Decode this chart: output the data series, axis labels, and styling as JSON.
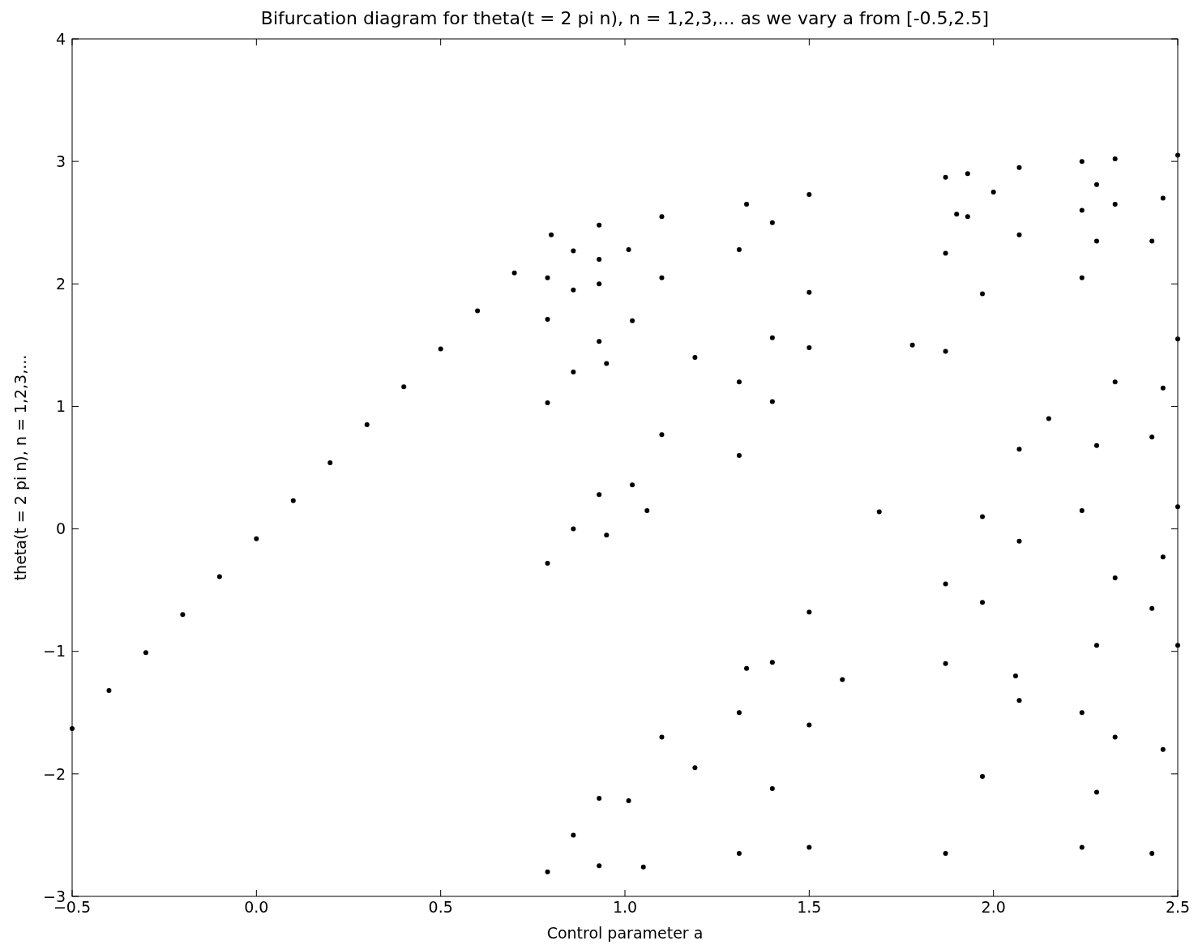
{
  "chart_data": {
    "type": "scatter",
    "title": "Bifurcation diagram for theta(t = 2 pi n), n = 1,2,3,...  as we vary a from [-0.5,2.5]",
    "xlabel": "Control parameter a",
    "ylabel": "theta(t = 2 pi n), n = 1,2,3,...",
    "xlim": [
      -0.5,
      2.5
    ],
    "ylim": [
      -3,
      4
    ],
    "xticks": [
      {
        "value": -0.5,
        "label": "−0.5"
      },
      {
        "value": 0,
        "label": "0.0"
      },
      0.5,
      {
        "value": 1,
        "label": "1.0"
      },
      1.5,
      {
        "value": 2,
        "label": "2.0"
      },
      2.5
    ],
    "yticks": [
      {
        "value": -3,
        "label": "−3"
      },
      {
        "value": -2,
        "label": "−2"
      },
      {
        "value": -1,
        "label": "−1"
      },
      0,
      1,
      2,
      3,
      4
    ],
    "grid": false,
    "marker": "circle",
    "series": [
      {
        "color": "#000000",
        "x": [
          -0.5,
          -0.4,
          -0.3,
          -0.2,
          -0.1,
          0,
          0.1,
          0.2,
          0.3,
          0.4,
          0.5,
          0.6,
          0.7,
          0.8,
          0.79,
          0.86,
          0.93,
          0.79,
          0.86,
          0.93,
          0.79,
          0.86,
          0.93,
          0.79,
          0.86,
          0.93,
          0.79,
          0.86,
          0.93,
          0.93,
          1.01,
          1.1,
          0.95,
          1.02,
          1.1,
          0.95,
          1.02,
          1.1,
          0.93,
          1.01,
          1.1,
          1.06,
          1.19,
          1.33,
          1.05,
          1.19,
          1.33,
          1.31,
          1.4,
          1.5,
          1.31,
          1.4,
          1.5,
          1.31,
          1.4,
          1.5,
          1.31,
          1.4,
          1.5,
          1.31,
          1.4,
          1.5,
          1.5,
          1.59,
          1.69,
          1.78,
          1.87,
          1.87,
          1.9,
          1.93,
          1.93,
          2.0,
          2.07,
          1.87,
          1.97,
          2.07,
          1.87,
          1.97,
          2.07,
          1.87,
          1.97,
          2.07,
          1.87,
          1.97,
          2.07,
          2.06,
          2.15,
          2.24,
          2.24,
          2.28,
          2.33,
          2.24,
          2.28,
          2.33,
          2.24,
          2.28,
          2.33,
          2.24,
          2.28,
          2.33,
          2.24,
          2.28,
          2.33,
          2.43,
          2.46,
          2.5,
          2.43,
          2.46,
          2.5,
          2.43,
          2.46,
          2.5,
          2.43,
          2.46,
          2.5
        ],
        "values": [
          -1.63,
          -1.32,
          -1.01,
          -0.7,
          -0.39,
          -0.08,
          0.23,
          0.54,
          0.85,
          1.16,
          1.47,
          1.78,
          2.09,
          2.4,
          2.05,
          2.27,
          2.48,
          1.71,
          1.95,
          2.2,
          1.03,
          1.28,
          1.53,
          -0.28,
          0,
          0.28,
          -2.8,
          -2.5,
          -2.2,
          2.0,
          2.28,
          2.55,
          1.35,
          1.7,
          2.05,
          -0.05,
          0.36,
          0.77,
          -2.75,
          -2.22,
          -1.7,
          0.15,
          1.4,
          2.65,
          -2.76,
          -1.95,
          -1.14,
          2.28,
          2.5,
          2.73,
          1.2,
          1.56,
          1.93,
          0.6,
          1.04,
          1.48,
          -1.5,
          -1.09,
          -0.68,
          -2.65,
          -2.12,
          -1.6,
          -2.6,
          -1.23,
          0.14,
          1.5,
          2.87,
          2.25,
          2.57,
          2.9,
          2.55,
          2.75,
          2.95,
          1.45,
          1.92,
          2.4,
          -0.45,
          0.1,
          0.65,
          -1.1,
          -0.6,
          -0.1,
          -2.65,
          -2.02,
          -1.4,
          -1.2,
          0.9,
          3.0,
          2.6,
          2.81,
          3.02,
          2.05,
          2.35,
          2.65,
          0.15,
          0.68,
          1.2,
          -1.5,
          -0.95,
          -0.4,
          -2.6,
          -2.15,
          -1.7,
          2.35,
          2.7,
          3.05,
          0.75,
          1.15,
          1.55,
          -0.65,
          -0.23,
          0.18,
          -2.65,
          -1.8,
          -0.95
        ]
      }
    ]
  }
}
